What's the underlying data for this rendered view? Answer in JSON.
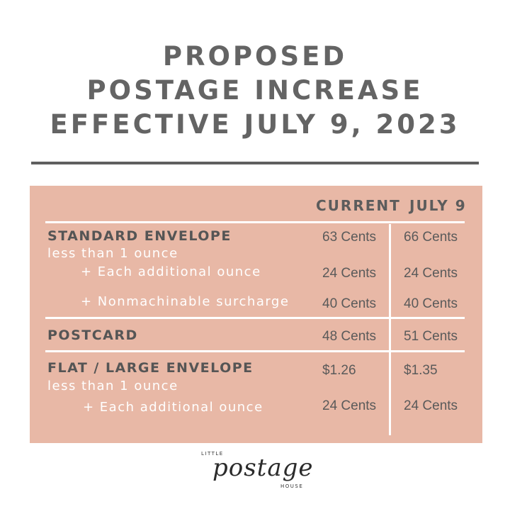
{
  "title": {
    "line1": "PROPOSED",
    "line2": "POSTAGE INCREASE",
    "line3": "EFFECTIVE JULY 9, 2023"
  },
  "table": {
    "headers": {
      "current": "CURRENT",
      "july9": "JULY 9"
    },
    "standard": {
      "label": "STANDARD ENVELOPE",
      "sub": "less than 1 ounce",
      "current": "63 Cents",
      "july9": "66 Cents",
      "additional": {
        "label": "+ Each additional ounce",
        "current": "24 Cents",
        "july9": "24 Cents"
      },
      "nonmachinable": {
        "label": "+ Nonmachinable surcharge",
        "current": "40 Cents",
        "july9": "40 Cents"
      }
    },
    "postcard": {
      "label": "POSTCARD",
      "current": "48 Cents",
      "july9": "51 Cents"
    },
    "flat": {
      "label": "FLAT / LARGE ENVELOPE",
      "sub": "less than 1 ounce",
      "current": "$1.26",
      "july9": "$1.35",
      "additional": {
        "label": "+ Each additional ounce",
        "current": "24 Cents",
        "july9": "24 Cents"
      }
    }
  },
  "logo": {
    "top": "LITTLE",
    "main": "postage",
    "bottom": "HOUSE"
  },
  "colors": {
    "panel": "#e8b8a6",
    "title": "#646464",
    "dividers": "#ffffff"
  }
}
